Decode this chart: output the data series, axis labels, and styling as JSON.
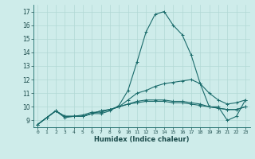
{
  "xlabel": "Humidex (Indice chaleur)",
  "ylabel": "",
  "bg_color": "#ceecea",
  "grid_color": "#b2d8d5",
  "line_color": "#1a6b6b",
  "xlim": [
    -0.5,
    23.5
  ],
  "ylim": [
    8.5,
    17.5
  ],
  "yticks": [
    9,
    10,
    11,
    12,
    13,
    14,
    15,
    16,
    17
  ],
  "xticks": [
    0,
    1,
    2,
    3,
    4,
    5,
    6,
    7,
    8,
    9,
    10,
    11,
    12,
    13,
    14,
    15,
    16,
    17,
    18,
    19,
    20,
    21,
    22,
    23
  ],
  "series": [
    [
      8.7,
      9.2,
      9.7,
      9.2,
      9.3,
      9.3,
      9.5,
      9.5,
      9.7,
      10.1,
      11.2,
      13.3,
      15.5,
      16.8,
      17.0,
      16.0,
      15.3,
      13.8,
      11.7,
      10.0,
      10.0,
      9.0,
      9.3,
      10.5
    ],
    [
      8.7,
      9.2,
      9.7,
      9.3,
      9.3,
      9.4,
      9.6,
      9.6,
      9.8,
      10.0,
      10.5,
      11.0,
      11.2,
      11.5,
      11.7,
      11.8,
      11.9,
      12.0,
      11.7,
      11.0,
      10.5,
      10.2,
      10.3,
      10.5
    ],
    [
      8.7,
      9.2,
      9.7,
      9.3,
      9.3,
      9.3,
      9.5,
      9.7,
      9.8,
      10.0,
      10.2,
      10.4,
      10.5,
      10.5,
      10.5,
      10.4,
      10.4,
      10.3,
      10.2,
      10.0,
      9.9,
      9.8,
      9.8,
      10.0
    ],
    [
      8.7,
      9.2,
      9.7,
      9.3,
      9.3,
      9.3,
      9.5,
      9.7,
      9.8,
      10.0,
      10.2,
      10.3,
      10.4,
      10.4,
      10.4,
      10.3,
      10.3,
      10.2,
      10.1,
      10.0,
      9.9,
      9.8,
      9.8,
      10.0
    ]
  ]
}
